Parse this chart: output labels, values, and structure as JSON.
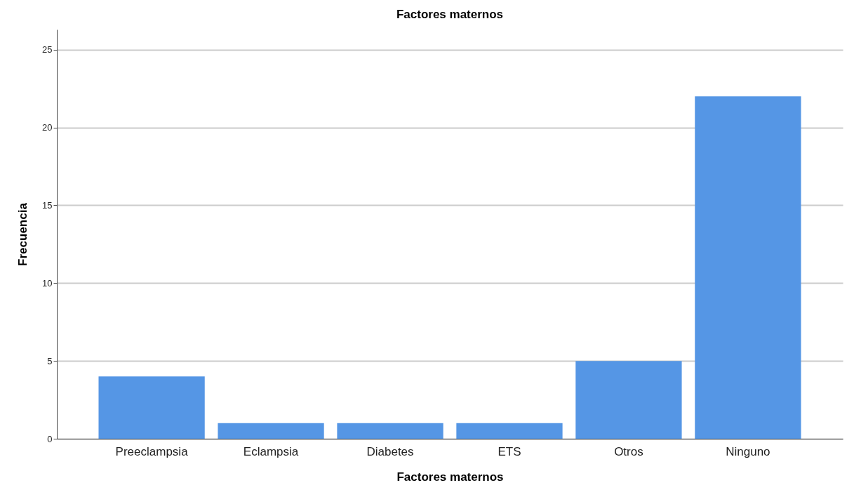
{
  "chart_data": {
    "type": "bar",
    "title": "Factores maternos",
    "xlabel": "Factores maternos",
    "ylabel": "Frecuencia",
    "categories": [
      "Preeclampsia",
      "Eclampsia",
      "Diabetes",
      "ETS",
      "Otros",
      "Ninguno"
    ],
    "values": [
      4,
      1,
      1,
      1,
      5,
      22
    ],
    "color": "#5596e5",
    "ylim": [
      0,
      26.3
    ],
    "yticks": [
      0,
      5,
      10,
      15,
      20,
      25
    ],
    "grid": "y"
  }
}
